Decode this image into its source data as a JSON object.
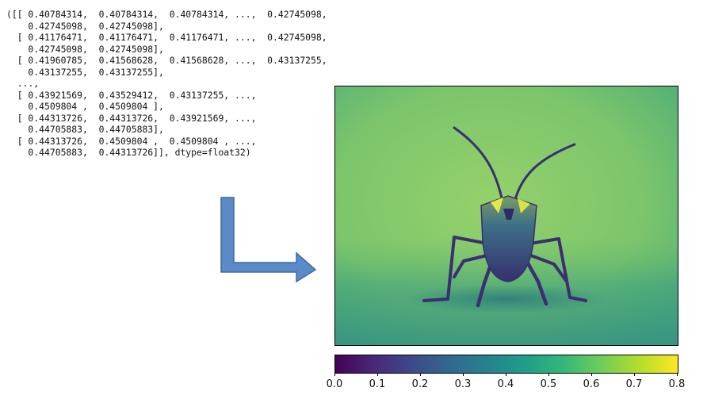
{
  "array_repr": {
    "lines": [
      "([[ 0.40784314,  0.40784314,  0.40784314, ...,  0.42745098,",
      "    0.42745098,  0.42745098],",
      "  [ 0.41176471,  0.41176471,  0.41176471, ...,  0.42745098,",
      "    0.42745098,  0.42745098],",
      "  [ 0.41960785,  0.41568628,  0.41568628, ...,  0.43137255,",
      "    0.43137255,  0.43137255],",
      "  ...,",
      "  [ 0.43921569,  0.43529412,  0.43137255, ...,",
      "    0.4509804 ,  0.4509804 ],",
      "  [ 0.44313726,  0.44313726,  0.43921569, ...,",
      "    0.44705883,  0.44705883],",
      "  [ 0.44313726,  0.4509804 ,  0.4509804 , ...,",
      "    0.44705883,  0.44313726]], dtype=float32)"
    ]
  },
  "arrow": {
    "fill": "#5b8ac8",
    "stroke": "#41689c"
  },
  "image": {
    "subject": "insect",
    "colormap": "viridis",
    "background_color": "#8bc96e"
  },
  "colorbar": {
    "colormap": "viridis",
    "range": [
      0.0,
      0.8
    ],
    "ticks": [
      "0.0",
      "0.1",
      "0.2",
      "0.3",
      "0.4",
      "0.5",
      "0.6",
      "0.7",
      "0.8"
    ],
    "colors": [
      "#440154",
      "#482878",
      "#3e4989",
      "#31688e",
      "#26828e",
      "#1f9e89",
      "#35b779",
      "#6ece58",
      "#b5de2b",
      "#fde725"
    ]
  }
}
